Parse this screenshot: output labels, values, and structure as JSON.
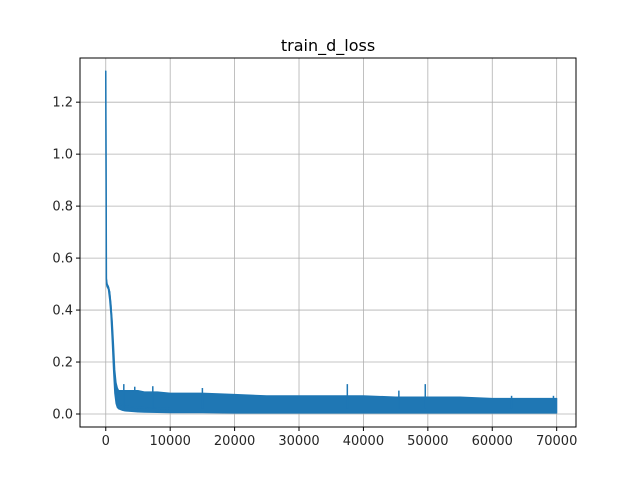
{
  "chart_data": {
    "type": "line",
    "title": "train_d_loss",
    "xlabel": "",
    "ylabel": "",
    "xlim": [
      -4000,
      73000
    ],
    "ylim": [
      -0.05,
      1.37
    ],
    "xticks": [
      0,
      10000,
      20000,
      30000,
      40000,
      50000,
      60000,
      70000
    ],
    "yticks": [
      0.0,
      0.2,
      0.4,
      0.6,
      0.8,
      1.0,
      1.2
    ],
    "grid": true,
    "legend": "none",
    "series": [
      {
        "color": "#1f77b4",
        "x": [
          0,
          100,
          200,
          400,
          600,
          800,
          1000,
          1200,
          1400,
          1600,
          1800,
          2000,
          2500,
          3000,
          4000,
          5000,
          6000,
          8000,
          10000,
          12000,
          15000,
          20000,
          25000,
          30000,
          35000,
          37500,
          40000,
          45000,
          50000,
          55000,
          60000,
          65000,
          70000
        ],
        "y": [
          1.32,
          0.52,
          0.5,
          0.49,
          0.47,
          0.42,
          0.33,
          0.22,
          0.12,
          0.07,
          0.05,
          0.04,
          0.035,
          0.03,
          0.027,
          0.025,
          0.024,
          0.022,
          0.02,
          0.02,
          0.02,
          0.02,
          0.02,
          0.02,
          0.02,
          0.02,
          0.02,
          0.02,
          0.02,
          0.02,
          0.02,
          0.02,
          0.02
        ],
        "band_upper": [
          1.32,
          0.52,
          0.5,
          0.49,
          0.47,
          0.42,
          0.36,
          0.27,
          0.17,
          0.12,
          0.1,
          0.09,
          0.09,
          0.09,
          0.09,
          0.09,
          0.085,
          0.085,
          0.08,
          0.08,
          0.08,
          0.075,
          0.07,
          0.07,
          0.07,
          0.07,
          0.07,
          0.065,
          0.065,
          0.065,
          0.06,
          0.06,
          0.06
        ],
        "band_lower": [
          1.32,
          0.5,
          0.49,
          0.48,
          0.44,
          0.38,
          0.28,
          0.17,
          0.08,
          0.04,
          0.025,
          0.02,
          0.015,
          0.012,
          0.01,
          0.008,
          0.007,
          0.006,
          0.005,
          0.005,
          0.005,
          0.004,
          0.004,
          0.004,
          0.004,
          0.004,
          0.004,
          0.004,
          0.004,
          0.004,
          0.004,
          0.004,
          0.004
        ],
        "spikes": [
          {
            "x": 37500,
            "y": 0.115
          },
          {
            "x": 49600,
            "y": 0.115
          },
          {
            "x": 2800,
            "y": 0.115
          },
          {
            "x": 4500,
            "y": 0.105
          },
          {
            "x": 7300,
            "y": 0.107
          },
          {
            "x": 15000,
            "y": 0.1
          },
          {
            "x": 45500,
            "y": 0.09
          },
          {
            "x": 63000,
            "y": 0.07
          },
          {
            "x": 69500,
            "y": 0.07
          }
        ]
      }
    ]
  }
}
